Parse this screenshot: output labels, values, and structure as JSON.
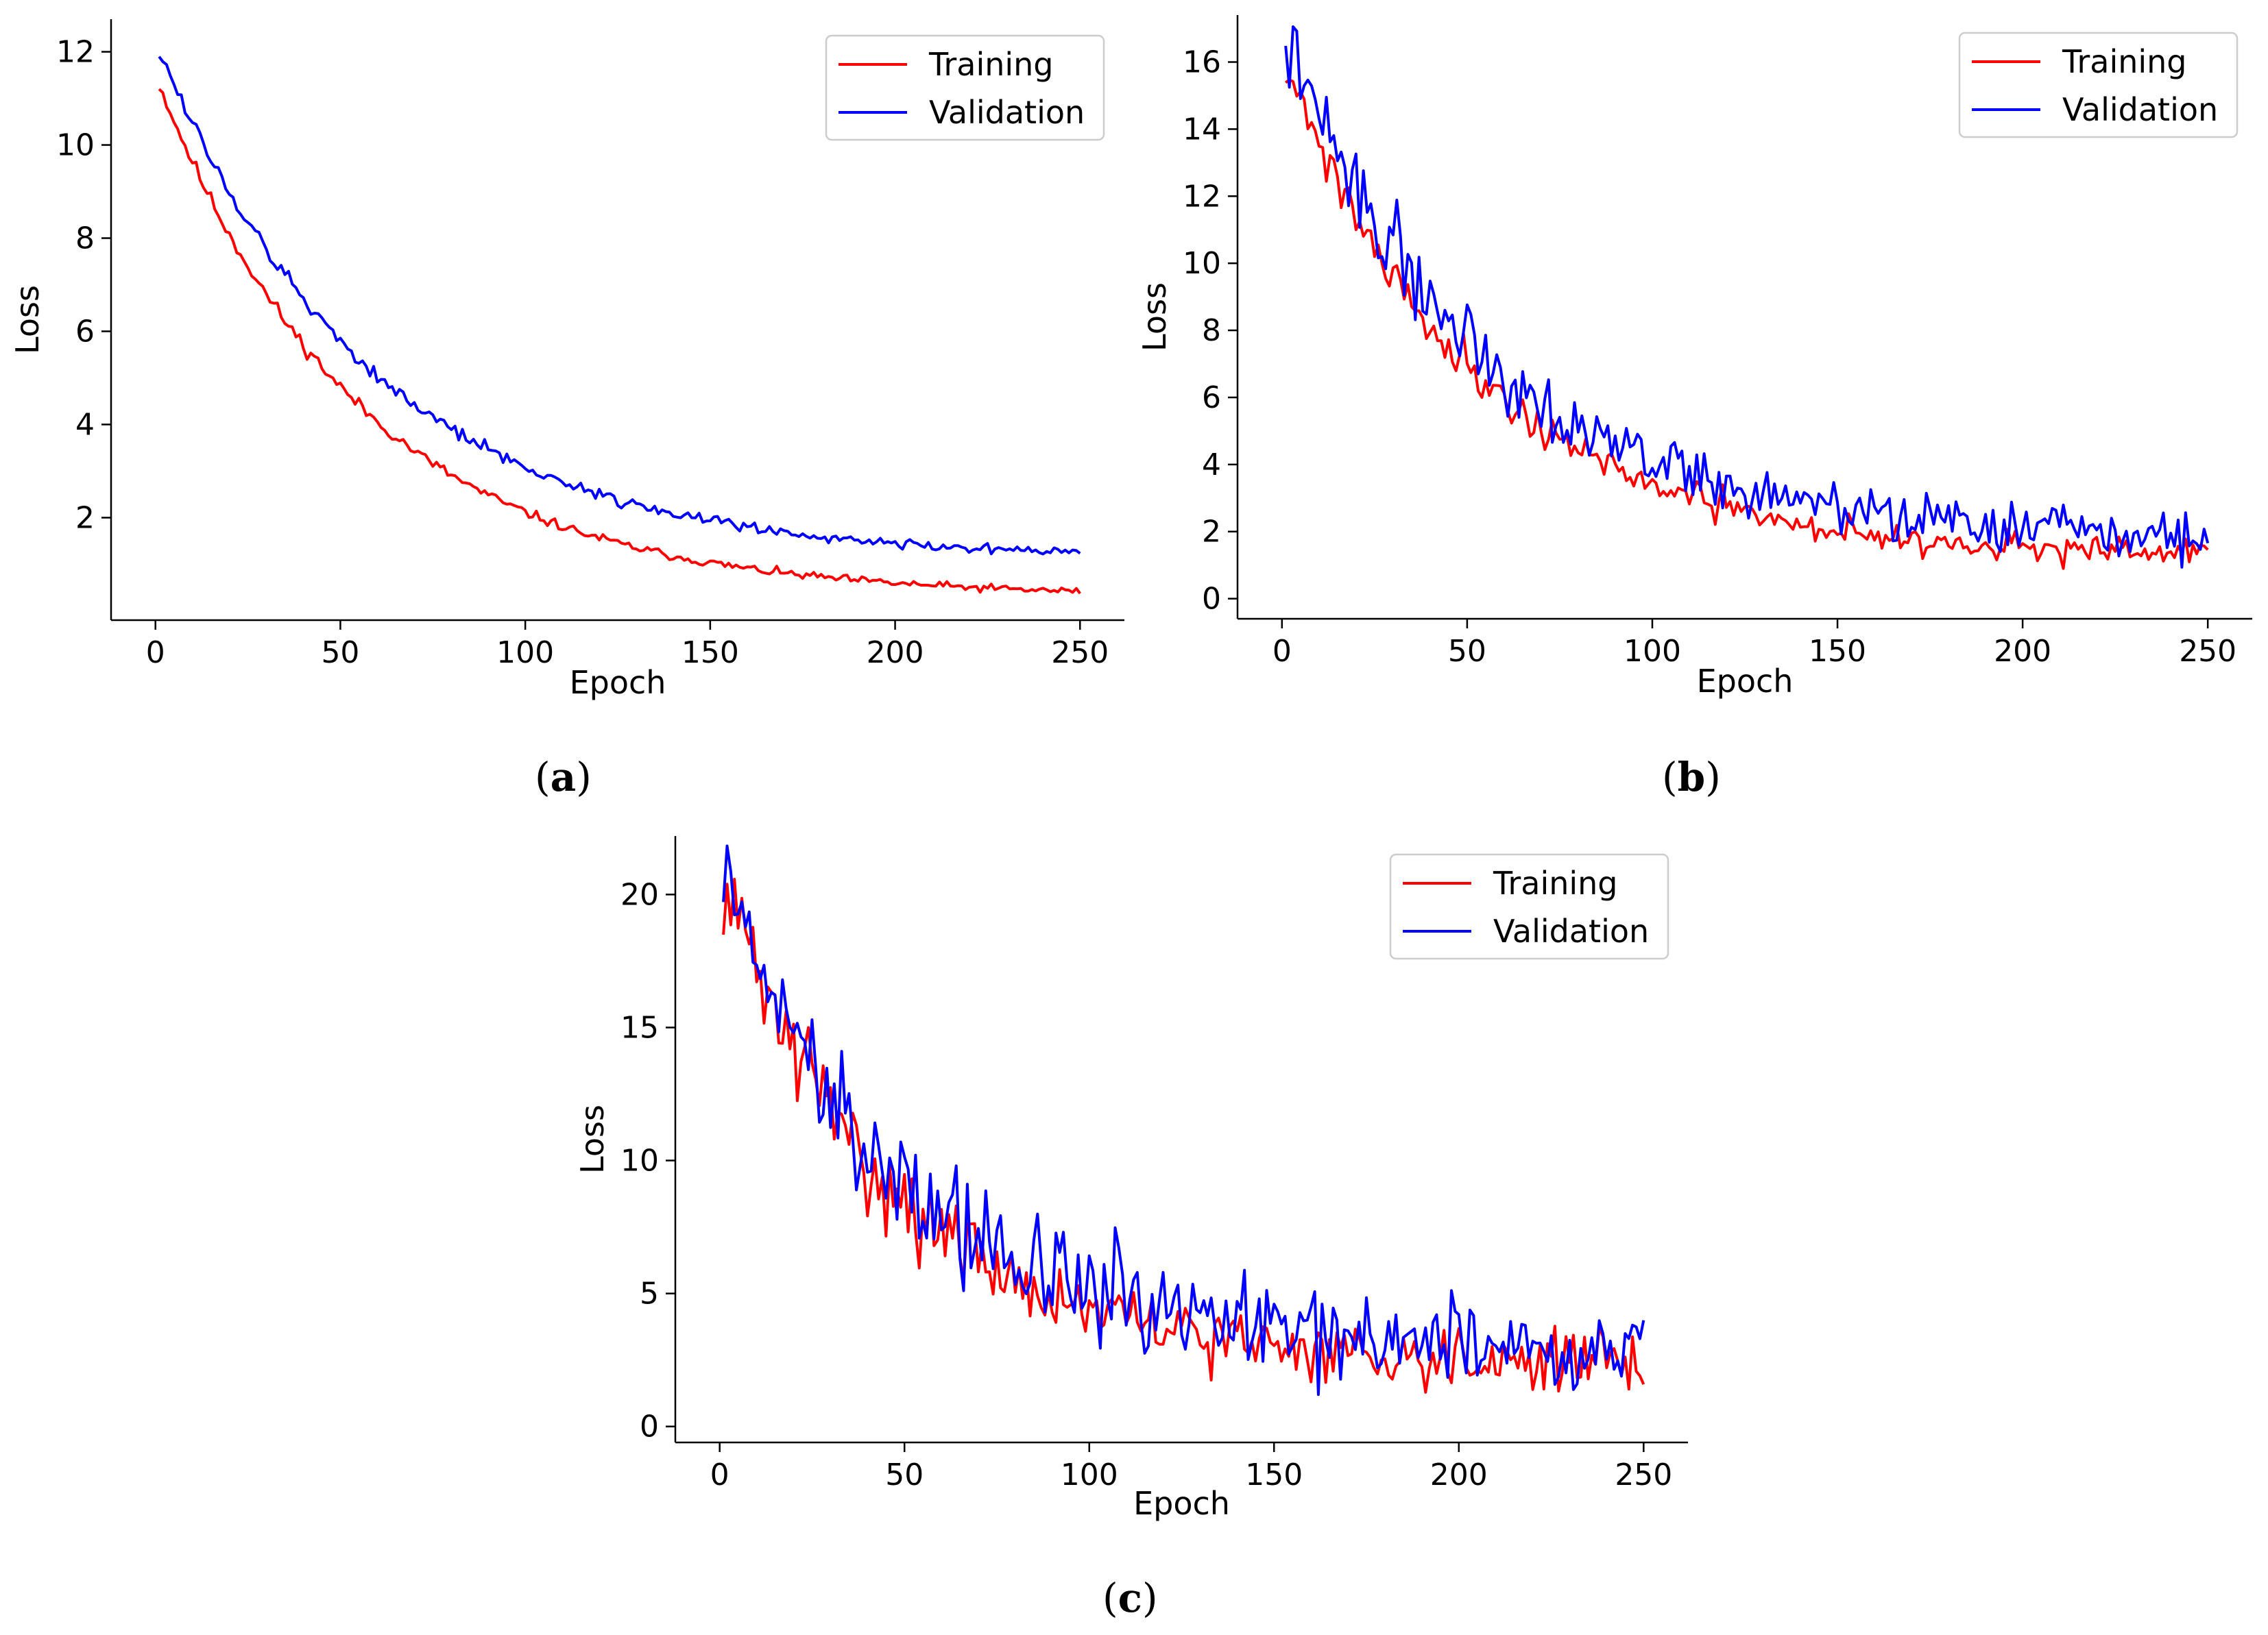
{
  "figure": {
    "colors": {
      "training": "#ff0000",
      "validation": "#0000ff",
      "axis": "#000000",
      "legend_border": "#cccccc"
    }
  },
  "chart_data": [
    {
      "id": "a",
      "type": "line",
      "caption": "(a)",
      "caption_letter": "a",
      "xlabel": "Epoch",
      "ylabel": "Loss",
      "xlim": [
        -12,
        262
      ],
      "ylim": [
        -0.2,
        12.7
      ],
      "xticks": [
        0,
        50,
        100,
        150,
        200,
        250
      ],
      "yticks": [
        2,
        4,
        6,
        8,
        10,
        12
      ],
      "legend": {
        "position": "top-right",
        "entries": [
          "Training",
          "Validation"
        ]
      },
      "grid": false,
      "series": [
        {
          "name": "Training",
          "color": "#ff0000",
          "model": {
            "form": "exp",
            "start": 11.3,
            "end": 0.3,
            "tau": 55,
            "noise": 0.08,
            "seed": 11
          }
        },
        {
          "name": "Validation",
          "color": "#0000ff",
          "model": {
            "form": "exp",
            "start": 12.05,
            "end": 1.1,
            "tau": 58,
            "noise": 0.09,
            "seed": 12
          }
        }
      ]
    },
    {
      "id": "b",
      "type": "line",
      "caption": "(b)",
      "caption_letter": "b",
      "xlabel": "Epoch",
      "ylabel": "Loss",
      "xlim": [
        -12,
        262
      ],
      "ylim": [
        -0.6,
        17.4
      ],
      "xticks": [
        0,
        50,
        100,
        150,
        200,
        250
      ],
      "yticks": [
        0,
        2,
        4,
        6,
        8,
        10,
        12,
        14,
        16
      ],
      "legend": {
        "position": "top-right",
        "entries": [
          "Training",
          "Validation"
        ]
      },
      "grid": false,
      "series": [
        {
          "name": "Training",
          "color": "#ff0000",
          "model": {
            "form": "exp",
            "start": 16.0,
            "end": 1.2,
            "tau": 52,
            "noise": 0.35,
            "seed": 21
          }
        },
        {
          "name": "Validation",
          "color": "#0000ff",
          "model": {
            "form": "exp",
            "start": 16.6,
            "end": 1.7,
            "tau": 55,
            "noise": 0.6,
            "seed": 22
          }
        }
      ]
    },
    {
      "id": "c",
      "type": "line",
      "caption": "(c)",
      "caption_letter": "c",
      "xlabel": "Epoch",
      "ylabel": "Loss",
      "xlim": [
        -12,
        262
      ],
      "ylim": [
        -0.6,
        22.2
      ],
      "xticks": [
        0,
        50,
        100,
        150,
        200,
        250
      ],
      "yticks": [
        0,
        5,
        10,
        15,
        20
      ],
      "legend": {
        "position": "top-right",
        "entries": [
          "Training",
          "Validation"
        ]
      },
      "grid": false,
      "series": [
        {
          "name": "Training",
          "color": "#ff0000",
          "model": {
            "form": "exp",
            "start": 20.5,
            "end": 2.4,
            "tau": 45,
            "noise": 0.9,
            "seed": 31
          }
        },
        {
          "name": "Validation",
          "color": "#0000ff",
          "model": {
            "form": "exp",
            "start": 20.6,
            "end": 2.9,
            "tau": 48,
            "noise": 1.3,
            "seed": 32
          }
        }
      ]
    }
  ]
}
